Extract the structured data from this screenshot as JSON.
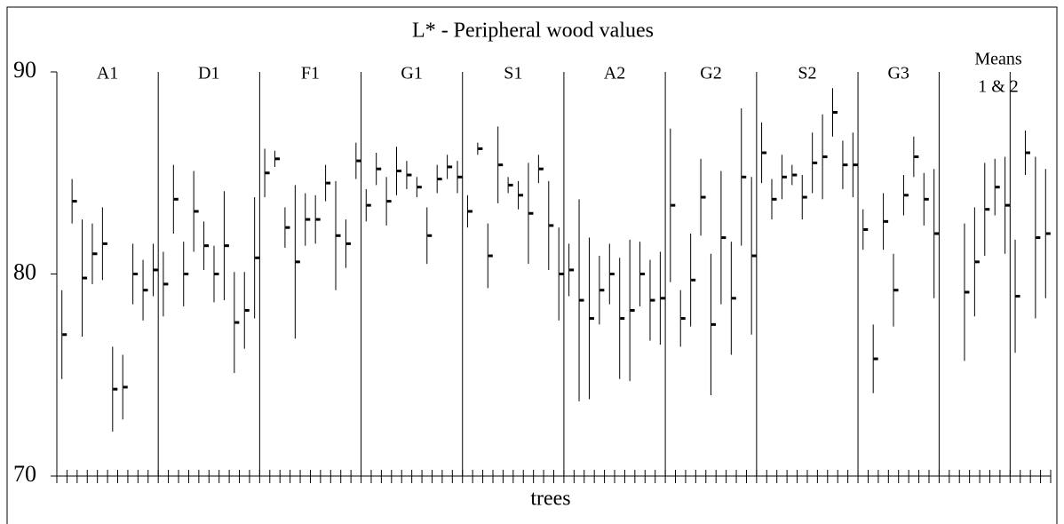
{
  "chart_data": {
    "type": "errorbar",
    "title": "L* - Peripheral wood  values",
    "x_label": "trees",
    "annotations": [
      "Means",
      "1 & 2"
    ],
    "ylim": [
      70,
      90
    ],
    "yticks": [
      70,
      80,
      90
    ],
    "xlim": [
      0,
      98
    ],
    "xticks": [
      0,
      1,
      2,
      3,
      4,
      5,
      6,
      7,
      8,
      9,
      10,
      11,
      12,
      13,
      14,
      15,
      16,
      17,
      18,
      19,
      20,
      21,
      22,
      23,
      24,
      25,
      26,
      27,
      28,
      29,
      30,
      31,
      32,
      33,
      34,
      35,
      36,
      37,
      38,
      39,
      40,
      41,
      42,
      43,
      44,
      45,
      46,
      47,
      48,
      49,
      50,
      51,
      52,
      53,
      54,
      55,
      56,
      57,
      58,
      59,
      60,
      61,
      62,
      63,
      64,
      65,
      66,
      67,
      68,
      69,
      70,
      71,
      72,
      73,
      74,
      75,
      76,
      77,
      78,
      79,
      80,
      81,
      82,
      83,
      84,
      85,
      86,
      87,
      88,
      89,
      90,
      91,
      92,
      93,
      94,
      95,
      96,
      97,
      98
    ],
    "dividers": [
      10,
      20,
      30,
      40,
      50,
      60,
      69,
      79,
      87,
      94
    ],
    "color": "#000000",
    "groups": [
      {
        "label": "A1",
        "x": [
          0.5,
          1.5,
          2.5,
          3.5,
          4.5,
          5.5,
          6.5,
          7.5,
          8.5,
          9.5
        ],
        "values": [
          77.0,
          83.6,
          79.8,
          81.0,
          81.5,
          74.3,
          74.4,
          80.0,
          79.2,
          80.2
        ],
        "errors": [
          2.2,
          1.1,
          2.9,
          1.5,
          1.8,
          2.1,
          1.6,
          1.5,
          1.5,
          1.3
        ]
      },
      {
        "label": "D1",
        "x": [
          10.5,
          11.5,
          12.5,
          13.5,
          14.5,
          15.5,
          16.5,
          17.5,
          18.5,
          19.5
        ],
        "values": [
          79.5,
          83.7,
          80.0,
          83.1,
          81.4,
          80.0,
          81.4,
          77.6,
          78.2,
          80.8
        ],
        "errors": [
          1.6,
          1.7,
          1.6,
          2.0,
          1.2,
          1.4,
          2.7,
          2.5,
          1.9,
          3.0
        ]
      },
      {
        "label": "F1",
        "x": [
          20.5,
          21.5,
          22.5,
          23.5,
          24.5,
          25.5,
          26.5,
          27.5,
          28.5,
          29.5
        ],
        "values": [
          85.0,
          85.7,
          82.3,
          80.6,
          82.7,
          82.7,
          84.5,
          81.9,
          81.5,
          85.6
        ],
        "errors": [
          1.2,
          0.4,
          1.0,
          3.8,
          1.3,
          1.2,
          0.9,
          2.7,
          1.2,
          0.9
        ]
      },
      {
        "label": "G1",
        "x": [
          30.5,
          31.5,
          32.5,
          33.5,
          34.5,
          35.5,
          36.5,
          37.5,
          38.5,
          39.5
        ],
        "values": [
          83.4,
          85.2,
          83.6,
          85.1,
          84.9,
          84.3,
          81.9,
          84.7,
          85.3,
          84.8
        ],
        "errors": [
          0.8,
          0.8,
          1.2,
          1.2,
          0.7,
          0.5,
          1.4,
          0.7,
          0.6,
          0.8
        ]
      },
      {
        "label": "S1",
        "x": [
          40.5,
          41.5,
          42.5,
          43.5,
          44.5,
          45.5,
          46.5,
          47.5,
          48.5,
          49.5
        ],
        "values": [
          83.1,
          86.2,
          80.9,
          85.4,
          84.4,
          83.9,
          83.0,
          85.2,
          82.4,
          80.0
        ],
        "errors": [
          0.8,
          0.3,
          1.6,
          1.9,
          0.4,
          0.7,
          2.5,
          0.7,
          2.2,
          2.3
        ]
      },
      {
        "label": "A2",
        "x": [
          50.5,
          51.5,
          52.5,
          53.5,
          54.5,
          55.5,
          56.5,
          57.5,
          58.5,
          59.5
        ],
        "values": [
          80.2,
          78.7,
          77.8,
          79.2,
          80.0,
          77.8,
          78.2,
          80.0,
          78.7,
          78.8
        ],
        "errors": [
          1.3,
          5.0,
          4.0,
          1.7,
          1.5,
          3.0,
          3.5,
          1.6,
          2.0,
          2.3
        ]
      },
      {
        "label": "G2",
        "x": [
          60.5,
          61.5,
          62.5,
          63.5,
          64.5,
          65.5,
          66.5,
          67.5,
          68.5
        ],
        "values": [
          83.4,
          77.8,
          79.7,
          83.8,
          77.5,
          81.8,
          78.8,
          84.8,
          80.9
        ],
        "errors": [
          3.8,
          1.4,
          2.3,
          1.9,
          3.5,
          3.3,
          2.8,
          3.4,
          3.9
        ]
      },
      {
        "label": "S2",
        "x": [
          69.5,
          70.5,
          71.5,
          72.5,
          73.5,
          74.5,
          75.5,
          76.5,
          77.5,
          78.5
        ],
        "values": [
          86.0,
          83.7,
          84.8,
          84.9,
          83.8,
          85.5,
          85.8,
          88.0,
          85.4,
          85.4
        ],
        "errors": [
          1.5,
          1.0,
          1.1,
          0.5,
          1.1,
          1.5,
          2.1,
          1.2,
          1.2,
          1.6
        ]
      },
      {
        "label": "G3",
        "x": [
          79.5,
          80.5,
          81.5,
          82.5,
          83.5,
          84.5,
          85.5,
          86.5
        ],
        "values": [
          82.2,
          75.8,
          82.6,
          79.2,
          83.9,
          85.8,
          83.7,
          82.0
        ],
        "errors": [
          1.0,
          1.7,
          1.4,
          1.8,
          1.0,
          1.0,
          1.3,
          3.2
        ]
      },
      {
        "x": [
          89.5,
          90.5,
          91.5,
          92.5,
          93.5
        ],
        "values": [
          79.1,
          80.6,
          83.2,
          84.3,
          83.4
        ],
        "errors": [
          3.4,
          2.7,
          2.3,
          1.4,
          2.4
        ]
      },
      {
        "x": [
          94.5,
          95.5,
          96.5,
          97.5
        ],
        "values": [
          78.9,
          86.0,
          81.8,
          82.0
        ],
        "errors": [
          2.8,
          1.1,
          4.0,
          3.2
        ]
      }
    ]
  }
}
